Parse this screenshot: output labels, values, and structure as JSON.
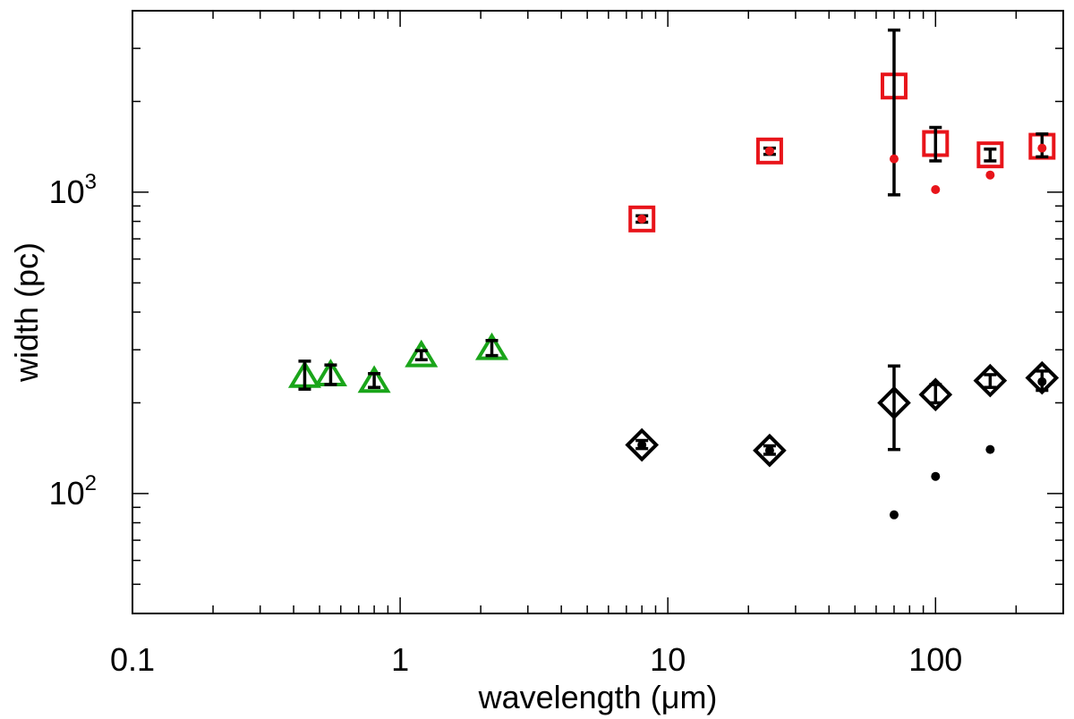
{
  "chart_data": {
    "type": "scatter",
    "xlabel": "wavelength (μm)",
    "ylabel": "width (pc)",
    "xscale": "log",
    "yscale": "log",
    "xlim": [
      0.1,
      300
    ],
    "ylim": [
      40,
      4000
    ],
    "grid": false,
    "legend": "none",
    "x_tick_labels": [
      {
        "value": 0.1,
        "label": "0.1"
      },
      {
        "value": 1,
        "label": "1"
      },
      {
        "value": 10,
        "label": "10"
      },
      {
        "value": 100,
        "label": "100"
      }
    ],
    "y_tick_labels": [
      {
        "value": 100,
        "base": "10",
        "exp": "2"
      },
      {
        "value": 1000,
        "base": "10",
        "exp": "3"
      }
    ],
    "series": [
      {
        "marker": "triangle",
        "color": "#1aa51a",
        "points": [
          {
            "x": 0.44,
            "y": 245,
            "ylo": 222,
            "yhi": 275
          },
          {
            "x": 0.55,
            "y": 248,
            "ylo": 230,
            "yhi": 267
          },
          {
            "x": 0.8,
            "y": 236,
            "ylo": 225,
            "yhi": 250
          },
          {
            "x": 1.2,
            "y": 287,
            "ylo": 278,
            "yhi": 298
          },
          {
            "x": 2.2,
            "y": 303,
            "ylo": 287,
            "yhi": 322
          }
        ]
      },
      {
        "marker": "square",
        "color": "#e8141a",
        "points": [
          {
            "x": 8,
            "y": 815,
            "ylo": 795,
            "yhi": 835
          },
          {
            "x": 24,
            "y": 1370,
            "ylo": 1335,
            "yhi": 1400
          },
          {
            "x": 70,
            "y": 2250,
            "ylo": 980,
            "yhi": 3450
          },
          {
            "x": 100,
            "y": 1450,
            "ylo": 1270,
            "yhi": 1640
          },
          {
            "x": 160,
            "y": 1330,
            "ylo": 1270,
            "yhi": 1390
          },
          {
            "x": 250,
            "y": 1420,
            "ylo": 1310,
            "yhi": 1560
          }
        ]
      },
      {
        "marker": "diamond",
        "color": "#000000",
        "points": [
          {
            "x": 8,
            "y": 145,
            "ylo": 141,
            "yhi": 150
          },
          {
            "x": 24,
            "y": 139,
            "ylo": 135,
            "yhi": 144
          },
          {
            "x": 70,
            "y": 200,
            "ylo": 140,
            "yhi": 265
          },
          {
            "x": 100,
            "y": 213,
            "ylo": 200,
            "yhi": 230
          },
          {
            "x": 160,
            "y": 237,
            "ylo": 225,
            "yhi": 248
          },
          {
            "x": 250,
            "y": 242,
            "ylo": 220,
            "yhi": 255
          }
        ]
      },
      {
        "marker": "dot",
        "color": "#e8141a",
        "points": [
          {
            "x": 8,
            "y": 815
          },
          {
            "x": 24,
            "y": 1370
          },
          {
            "x": 70,
            "y": 1290
          },
          {
            "x": 100,
            "y": 1020
          },
          {
            "x": 160,
            "y": 1140
          },
          {
            "x": 250,
            "y": 1400
          }
        ]
      },
      {
        "marker": "dot",
        "color": "#000000",
        "points": [
          {
            "x": 8,
            "y": 145
          },
          {
            "x": 24,
            "y": 139
          },
          {
            "x": 70,
            "y": 85
          },
          {
            "x": 100,
            "y": 114
          },
          {
            "x": 160,
            "y": 140
          },
          {
            "x": 250,
            "y": 235
          }
        ]
      }
    ]
  }
}
